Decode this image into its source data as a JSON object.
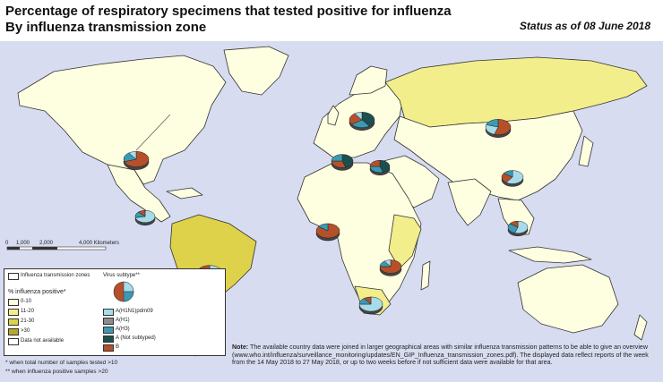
{
  "title_line1": "Percentage of respiratory specimens that tested positive for influenza",
  "title_line2": "By influenza transmission zone",
  "status": "Status as of 08 June 2018",
  "scale_labels": [
    "0",
    "1,000",
    "2,000",
    "4,000 Kilometers"
  ],
  "legend": {
    "zones_label": "Influenza transmission zones",
    "positive_title": "% influenza positive*",
    "positive_classes": [
      {
        "label": "0-10",
        "color": "#fefee0"
      },
      {
        "label": "11-20",
        "color": "#f2ee8c"
      },
      {
        "label": "21-30",
        "color": "#ddd24a"
      },
      {
        "label": ">30",
        "color": "#b8a82a"
      },
      {
        "label": "Data not available",
        "color": "#ffffff"
      }
    ],
    "subtype_title": "Virus subtype**",
    "subtypes": [
      {
        "label": "A(H1N1)pdm09",
        "color": "#a6dcea"
      },
      {
        "label": "A(H1)",
        "color": "#8c8c8c"
      },
      {
        "label": "A(H3)",
        "color": "#3a9ab4"
      },
      {
        "label": "A (Not subtyped)",
        "color": "#1e4f4f"
      },
      {
        "label": "B",
        "color": "#b5502a"
      }
    ]
  },
  "footnotes": [
    "*  when total number of samples tested >10",
    "** when influenza positive samples >20"
  ],
  "note_label": "Note:",
  "note_text": "The available country data were joined in larger geographical areas with similar influenza transmission patterns to be able to give an overview (www.who.int/influenza/surveillance_monitoring/updates/EN_GIP_Influenza_transmission_zones.pdf). The displayed data reflect reports of the week from the 14 May 2018 to 27 May 2018, or up to two weeks before if not sufficient data were available for that area.",
  "pies": [
    {
      "name": "north-america",
      "slices": [
        {
          "s": "B",
          "v": 70
        },
        {
          "s": "A(H3)",
          "v": 20
        },
        {
          "s": "A(H1N1)pdm09",
          "v": 10
        }
      ]
    },
    {
      "name": "central-america",
      "slices": [
        {
          "s": "A(H1N1)pdm09",
          "v": 72
        },
        {
          "s": "A(H3)",
          "v": 16
        },
        {
          "s": "B",
          "v": 12
        }
      ]
    },
    {
      "name": "northern-europe",
      "slices": [
        {
          "s": "A (Not subtyped)",
          "v": 40
        },
        {
          "s": "A(H3)",
          "v": 25
        },
        {
          "s": "B",
          "v": 25
        },
        {
          "s": "A(H1N1)pdm09",
          "v": 10
        }
      ]
    },
    {
      "name": "western-europe",
      "slices": [
        {
          "s": "A (Not subtyped)",
          "v": 45
        },
        {
          "s": "B",
          "v": 30
        },
        {
          "s": "A(H3)",
          "v": 25
        }
      ]
    },
    {
      "name": "eastern-europe",
      "slices": [
        {
          "s": "A (Not subtyped)",
          "v": 45
        },
        {
          "s": "A(H3)",
          "v": 30
        },
        {
          "s": "B",
          "v": 25
        }
      ]
    },
    {
      "name": "russia",
      "slices": [
        {
          "s": "B",
          "v": 55
        },
        {
          "s": "A(H1N1)pdm09",
          "v": 25
        },
        {
          "s": "A(H3)",
          "v": 20
        }
      ]
    },
    {
      "name": "central-asia",
      "slices": [
        {
          "s": "A(H1N1)pdm09",
          "v": 60
        },
        {
          "s": "B",
          "v": 25
        },
        {
          "s": "A(H3)",
          "v": 15
        }
      ]
    },
    {
      "name": "eastern-asia",
      "slices": [
        {
          "s": "A(H1N1)pdm09",
          "v": 70
        },
        {
          "s": "A(H3)",
          "v": 20
        },
        {
          "s": "B",
          "v": 10
        }
      ]
    },
    {
      "name": "southern-asia",
      "slices": [
        {
          "s": "A(H1N1)pdm09",
          "v": 45
        },
        {
          "s": "A(H3)",
          "v": 30
        },
        {
          "s": "B",
          "v": 25
        }
      ]
    },
    {
      "name": "south-east-asia",
      "slices": [
        {
          "s": "A(H1N1)pdm09",
          "v": 55
        },
        {
          "s": "A(H3)",
          "v": 30
        },
        {
          "s": "B",
          "v": 15
        }
      ]
    },
    {
      "name": "western-asia",
      "slices": [
        {
          "s": "B",
          "v": 75
        },
        {
          "s": "A(H3)",
          "v": 15
        },
        {
          "s": "A(H1N1)pdm09",
          "v": 10
        }
      ]
    },
    {
      "name": "middle-africa",
      "slices": [
        {
          "s": "B",
          "v": 85
        },
        {
          "s": "A(H3)",
          "v": 15
        }
      ]
    },
    {
      "name": "eastern-africa",
      "slices": [
        {
          "s": "B",
          "v": 75
        },
        {
          "s": "A(H3)",
          "v": 15
        },
        {
          "s": "A(H1N1)pdm09",
          "v": 10
        }
      ]
    },
    {
      "name": "southern-africa",
      "slices": [
        {
          "s": "A(H1N1)pdm09",
          "v": 75
        },
        {
          "s": "A(H3)",
          "v": 15
        },
        {
          "s": "B",
          "v": 10
        }
      ]
    },
    {
      "name": "tropical-south-america",
      "slices": [
        {
          "s": "A(H1N1)pdm09",
          "v": 60
        },
        {
          "s": "A(H3)",
          "v": 25
        },
        {
          "s": "B",
          "v": 15
        }
      ]
    },
    {
      "name": "temperate-south-america",
      "slices": [
        {
          "s": "A(H1N1)pdm09",
          "v": 50
        },
        {
          "s": "A(H3)",
          "v": 35
        },
        {
          "s": "B",
          "v": 15
        }
      ]
    },
    {
      "name": "oceania",
      "slices": [
        {
          "s": "A(H1N1)pdm09",
          "v": 80
        },
        {
          "s": "A(H3)",
          "v": 12
        },
        {
          "s": "B",
          "v": 8
        }
      ]
    }
  ]
}
